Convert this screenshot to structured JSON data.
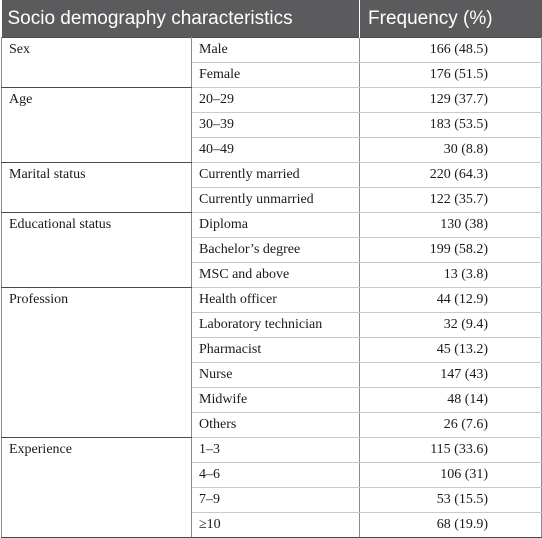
{
  "table": {
    "headers": [
      "Socio demography characteristics",
      "Frequency (%)"
    ],
    "groups": [
      {
        "label": "Sex",
        "rows": [
          {
            "sub": "Male",
            "value": "166 (48.5)"
          },
          {
            "sub": "Female",
            "value": "176 (51.5)"
          }
        ]
      },
      {
        "label": "Age",
        "rows": [
          {
            "sub": "20–29",
            "value": "129 (37.7)"
          },
          {
            "sub": "30–39",
            "value": "183 (53.5)"
          },
          {
            "sub": "40–49",
            "value": "30 (8.8)"
          }
        ]
      },
      {
        "label": "Marital status",
        "rows": [
          {
            "sub": "Currently married",
            "value": "220 (64.3)"
          },
          {
            "sub": "Currently unmarried",
            "value": "122 (35.7)"
          }
        ]
      },
      {
        "label": "Educational status",
        "rows": [
          {
            "sub": "Diploma",
            "value": "130 (38)"
          },
          {
            "sub": "Bachelor’s degree",
            "value": "199 (58.2)"
          },
          {
            "sub": "MSC and above",
            "value": "13 (3.8)"
          }
        ]
      },
      {
        "label": "Profession",
        "rows": [
          {
            "sub": "Health officer",
            "value": "44 (12.9)"
          },
          {
            "sub": "Laboratory technician",
            "value": "32 (9.4)"
          },
          {
            "sub": "Pharmacist",
            "value": "45 (13.2)"
          },
          {
            "sub": "Nurse",
            "value": "147 (43)"
          },
          {
            "sub": "Midwife",
            "value": "48 (14)"
          },
          {
            "sub": "Others",
            "value": "26 (7.6)"
          }
        ]
      },
      {
        "label": "Experience",
        "rows": [
          {
            "sub": "1–3",
            "value": "115 (33.6)"
          },
          {
            "sub": "4–6",
            "value": "106 (31)"
          },
          {
            "sub": "7–9",
            "value": "53 (15.5)"
          },
          {
            "sub": "≥10",
            "value": "68 (19.9)"
          }
        ]
      }
    ]
  }
}
